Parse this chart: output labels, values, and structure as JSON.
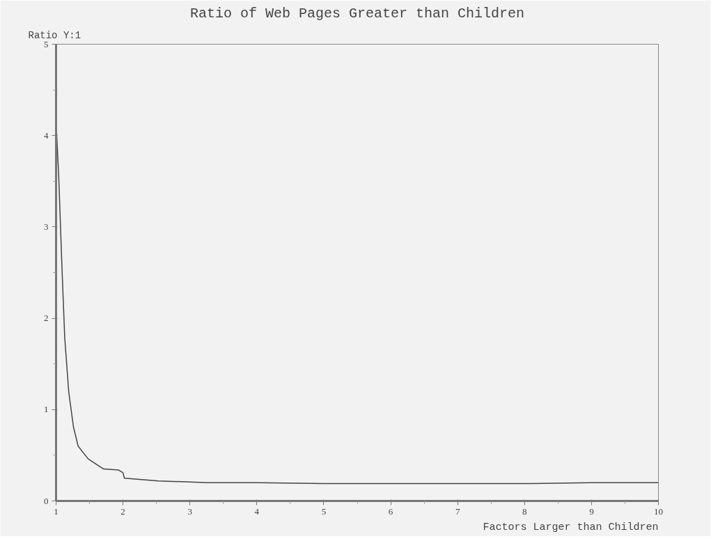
{
  "chart_data": {
    "type": "line",
    "title": "Ratio of Web Pages Greater than Children",
    "xlabel": "Factors Larger than Children",
    "ylabel": "Ratio Y:1",
    "x": [
      1,
      1.04,
      1.09,
      1.13,
      1.19,
      1.26,
      1.33,
      1.48,
      1.71,
      1.93,
      2.0,
      2.02,
      2.53,
      3.27,
      4,
      5,
      6,
      7,
      8,
      9,
      10
    ],
    "series": [
      {
        "color": "#444444",
        "values": [
          4.16,
          3.55,
          2.52,
          1.78,
          1.19,
          0.81,
          0.6,
          0.46,
          0.35,
          0.34,
          0.31,
          0.25,
          0.22,
          0.2,
          0.2,
          0.19,
          0.19,
          0.19,
          0.19,
          0.2,
          0.2
        ]
      }
    ],
    "xlim": [
      1,
      10
    ],
    "ylim": [
      0,
      5
    ],
    "xticks": [
      1,
      2,
      3,
      4,
      5,
      6,
      7,
      8,
      9,
      10
    ],
    "yticks": [
      0,
      1,
      2,
      3,
      4,
      5
    ],
    "line_style": "solid"
  }
}
